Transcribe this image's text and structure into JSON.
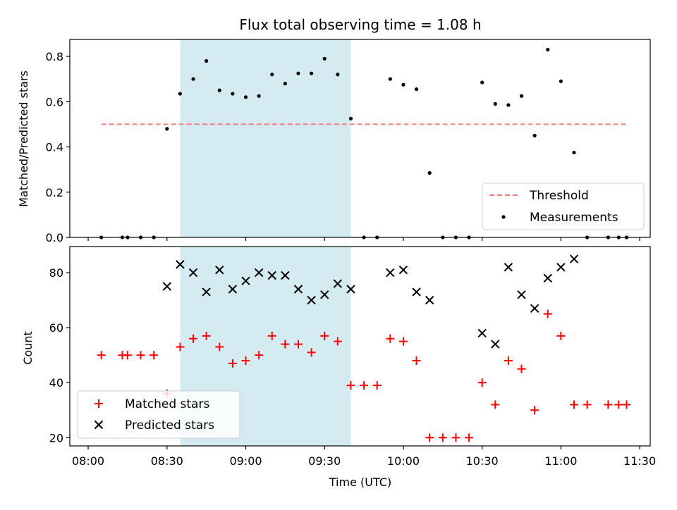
{
  "chart_data": {
    "type": "scatter",
    "title": "Flux total observing time = 1.08 h",
    "xlabel": "Time (UTC)",
    "x_ticks": [
      "08:00",
      "08:30",
      "09:00",
      "09:30",
      "10:00",
      "10:30",
      "11:00",
      "11:30"
    ],
    "x_range": [
      "07:53",
      "11:34"
    ],
    "highlight_span": [
      "08:35",
      "09:40"
    ],
    "highlight_color": "#d4ebf2",
    "top": {
      "ylabel": "Matched/Predicted stars",
      "ylim": [
        0,
        0.875
      ],
      "y_ticks": [
        "0.0",
        "0.2",
        "0.4",
        "0.6",
        "0.8"
      ],
      "threshold": {
        "name": "Threshold",
        "value": 0.5,
        "x_start": "08:05",
        "x_end": "11:25",
        "color": "#f08080"
      },
      "series": [
        {
          "name": "Measurements",
          "color": "#000000",
          "points": [
            [
              "08:05",
              0
            ],
            [
              "08:13",
              0
            ],
            [
              "08:15",
              0
            ],
            [
              "08:20",
              0
            ],
            [
              "08:25",
              0
            ],
            [
              "08:30",
              0.48
            ],
            [
              "08:35",
              0.635
            ],
            [
              "08:40",
              0.7
            ],
            [
              "08:45",
              0.78
            ],
            [
              "08:50",
              0.65
            ],
            [
              "08:55",
              0.635
            ],
            [
              "09:00",
              0.62
            ],
            [
              "09:05",
              0.625
            ],
            [
              "09:10",
              0.72
            ],
            [
              "09:15",
              0.68
            ],
            [
              "09:20",
              0.725
            ],
            [
              "09:25",
              0.725
            ],
            [
              "09:30",
              0.79
            ],
            [
              "09:35",
              0.72
            ],
            [
              "09:40",
              0.525
            ],
            [
              "09:45",
              0
            ],
            [
              "09:50",
              0
            ],
            [
              "09:55",
              0.7
            ],
            [
              "10:00",
              0.675
            ],
            [
              "10:05",
              0.655
            ],
            [
              "10:10",
              0.285
            ],
            [
              "10:15",
              0
            ],
            [
              "10:20",
              0
            ],
            [
              "10:25",
              0
            ],
            [
              "10:30",
              0.685
            ],
            [
              "10:35",
              0.59
            ],
            [
              "10:40",
              0.585
            ],
            [
              "10:45",
              0.625
            ],
            [
              "10:50",
              0.45
            ],
            [
              "10:55",
              0.83
            ],
            [
              "11:00",
              0.69
            ],
            [
              "11:05",
              0.375
            ],
            [
              "11:10",
              0
            ],
            [
              "11:18",
              0
            ],
            [
              "11:22",
              0
            ],
            [
              "11:25",
              0
            ]
          ]
        }
      ],
      "legend": {
        "position": "lower-right",
        "entries": [
          "Threshold",
          "Measurements"
        ]
      }
    },
    "bottom": {
      "ylabel": "Count",
      "ylim": [
        17,
        89.5
      ],
      "y_ticks": [
        "20",
        "40",
        "60",
        "80"
      ],
      "series": [
        {
          "name": "Matched stars",
          "marker": "plus",
          "color": "#ff0000",
          "points": [
            [
              "08:05",
              50
            ],
            [
              "08:13",
              50
            ],
            [
              "08:15",
              50
            ],
            [
              "08:20",
              50
            ],
            [
              "08:25",
              50
            ],
            [
              "08:30",
              36
            ],
            [
              "08:35",
              53
            ],
            [
              "08:40",
              56
            ],
            [
              "08:45",
              57
            ],
            [
              "08:50",
              53
            ],
            [
              "08:55",
              47
            ],
            [
              "09:00",
              48
            ],
            [
              "09:05",
              50
            ],
            [
              "09:10",
              57
            ],
            [
              "09:15",
              54
            ],
            [
              "09:20",
              54
            ],
            [
              "09:25",
              51
            ],
            [
              "09:30",
              57
            ],
            [
              "09:35",
              55
            ],
            [
              "09:40",
              39
            ],
            [
              "09:45",
              39
            ],
            [
              "09:50",
              39
            ],
            [
              "09:55",
              56
            ],
            [
              "10:00",
              55
            ],
            [
              "10:05",
              48
            ],
            [
              "10:10",
              20
            ],
            [
              "10:15",
              20
            ],
            [
              "10:20",
              20
            ],
            [
              "10:25",
              20
            ],
            [
              "10:30",
              40
            ],
            [
              "10:35",
              32
            ],
            [
              "10:40",
              48
            ],
            [
              "10:45",
              45
            ],
            [
              "10:50",
              30
            ],
            [
              "10:55",
              65
            ],
            [
              "11:00",
              57
            ],
            [
              "11:05",
              32
            ],
            [
              "11:10",
              32
            ],
            [
              "11:18",
              32
            ],
            [
              "11:22",
              32
            ],
            [
              "11:25",
              32
            ]
          ]
        },
        {
          "name": "Predicted stars",
          "marker": "x",
          "color": "#000000",
          "points": [
            [
              "08:30",
              75
            ],
            [
              "08:35",
              83
            ],
            [
              "08:40",
              80
            ],
            [
              "08:45",
              73
            ],
            [
              "08:50",
              81
            ],
            [
              "08:55",
              74
            ],
            [
              "09:00",
              77
            ],
            [
              "09:05",
              80
            ],
            [
              "09:10",
              79
            ],
            [
              "09:15",
              79
            ],
            [
              "09:20",
              74
            ],
            [
              "09:25",
              70
            ],
            [
              "09:30",
              72
            ],
            [
              "09:35",
              76
            ],
            [
              "09:40",
              74
            ],
            [
              "09:55",
              80
            ],
            [
              "10:00",
              81
            ],
            [
              "10:05",
              73
            ],
            [
              "10:10",
              70
            ],
            [
              "10:30",
              58
            ],
            [
              "10:35",
              54
            ],
            [
              "10:40",
              82
            ],
            [
              "10:45",
              72
            ],
            [
              "10:50",
              67
            ],
            [
              "10:55",
              78
            ],
            [
              "11:00",
              82
            ],
            [
              "11:05",
              85
            ]
          ]
        }
      ],
      "legend": {
        "position": "lower-left",
        "entries": [
          "Matched stars",
          "Predicted stars"
        ]
      }
    }
  }
}
